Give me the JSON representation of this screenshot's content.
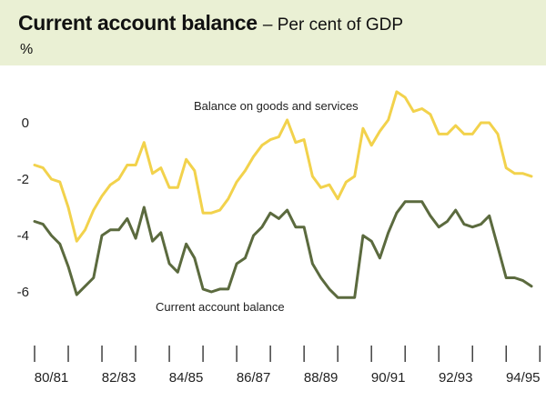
{
  "header": {
    "title": "Current account balance",
    "subtitle": "– Per cent of GDP",
    "unit": "%"
  },
  "colors": {
    "header_bg": "#eaf0d4",
    "goods_line": "#f2d24c",
    "current_line": "#5b6a3e"
  },
  "chart_data": {
    "type": "line",
    "title": "Current account balance – Per cent of GDP",
    "ylabel": "%",
    "xlabel": "",
    "ylim": [
      -7.5,
      1.5
    ],
    "yticks": [
      0,
      -2,
      -4,
      -6
    ],
    "ytick_labels": [
      "0",
      "-2",
      "-4",
      "-6"
    ],
    "x_range": [
      0,
      59
    ],
    "xtick_labels": [
      "80/81",
      "82/83",
      "84/85",
      "86/87",
      "88/89",
      "90/91",
      "92/93",
      "94/95"
    ],
    "grid": false,
    "annotations": [
      "Balance on goods and services",
      "Current account balance"
    ],
    "series": [
      {
        "name": "Balance on goods and services",
        "values": [
          -1.5,
          -1.6,
          -2.0,
          -2.1,
          -3.0,
          -4.2,
          -3.8,
          -3.1,
          -2.6,
          -2.2,
          -2.0,
          -1.5,
          -1.5,
          -0.7,
          -1.8,
          -1.6,
          -2.3,
          -2.3,
          -1.3,
          -1.7,
          -3.2,
          -3.2,
          -3.1,
          -2.7,
          -2.1,
          -1.7,
          -1.2,
          -0.8,
          -0.6,
          -0.5,
          0.1,
          -0.7,
          -0.6,
          -1.9,
          -2.3,
          -2.2,
          -2.7,
          -2.1,
          -1.9,
          -0.2,
          -0.8,
          -0.3,
          0.1,
          1.1,
          0.9,
          0.4,
          0.5,
          0.3,
          -0.4,
          -0.4,
          -0.1,
          -0.4,
          -0.4,
          0.0,
          0.0,
          -0.4,
          -1.6,
          -1.8,
          -1.8,
          -1.9
        ]
      },
      {
        "name": "Current account balance",
        "values": [
          -3.5,
          -3.6,
          -4.0,
          -4.3,
          -5.1,
          -6.1,
          -5.8,
          -5.5,
          -4.0,
          -3.8,
          -3.8,
          -3.4,
          -4.1,
          -3.0,
          -4.2,
          -3.9,
          -5.0,
          -5.3,
          -4.3,
          -4.8,
          -5.9,
          -6.0,
          -5.9,
          -5.9,
          -5.0,
          -4.8,
          -4.0,
          -3.7,
          -3.2,
          -3.4,
          -3.1,
          -3.7,
          -3.7,
          -5.0,
          -5.5,
          -5.9,
          -6.2,
          -6.2,
          -6.2,
          -4.0,
          -4.2,
          -4.8,
          -3.9,
          -3.2,
          -2.8,
          -2.8,
          -2.8,
          -3.3,
          -3.7,
          -3.5,
          -3.1,
          -3.6,
          -3.7,
          -3.6,
          -3.3,
          -4.4,
          -5.5,
          -5.5,
          -5.6,
          -5.8
        ]
      }
    ]
  }
}
